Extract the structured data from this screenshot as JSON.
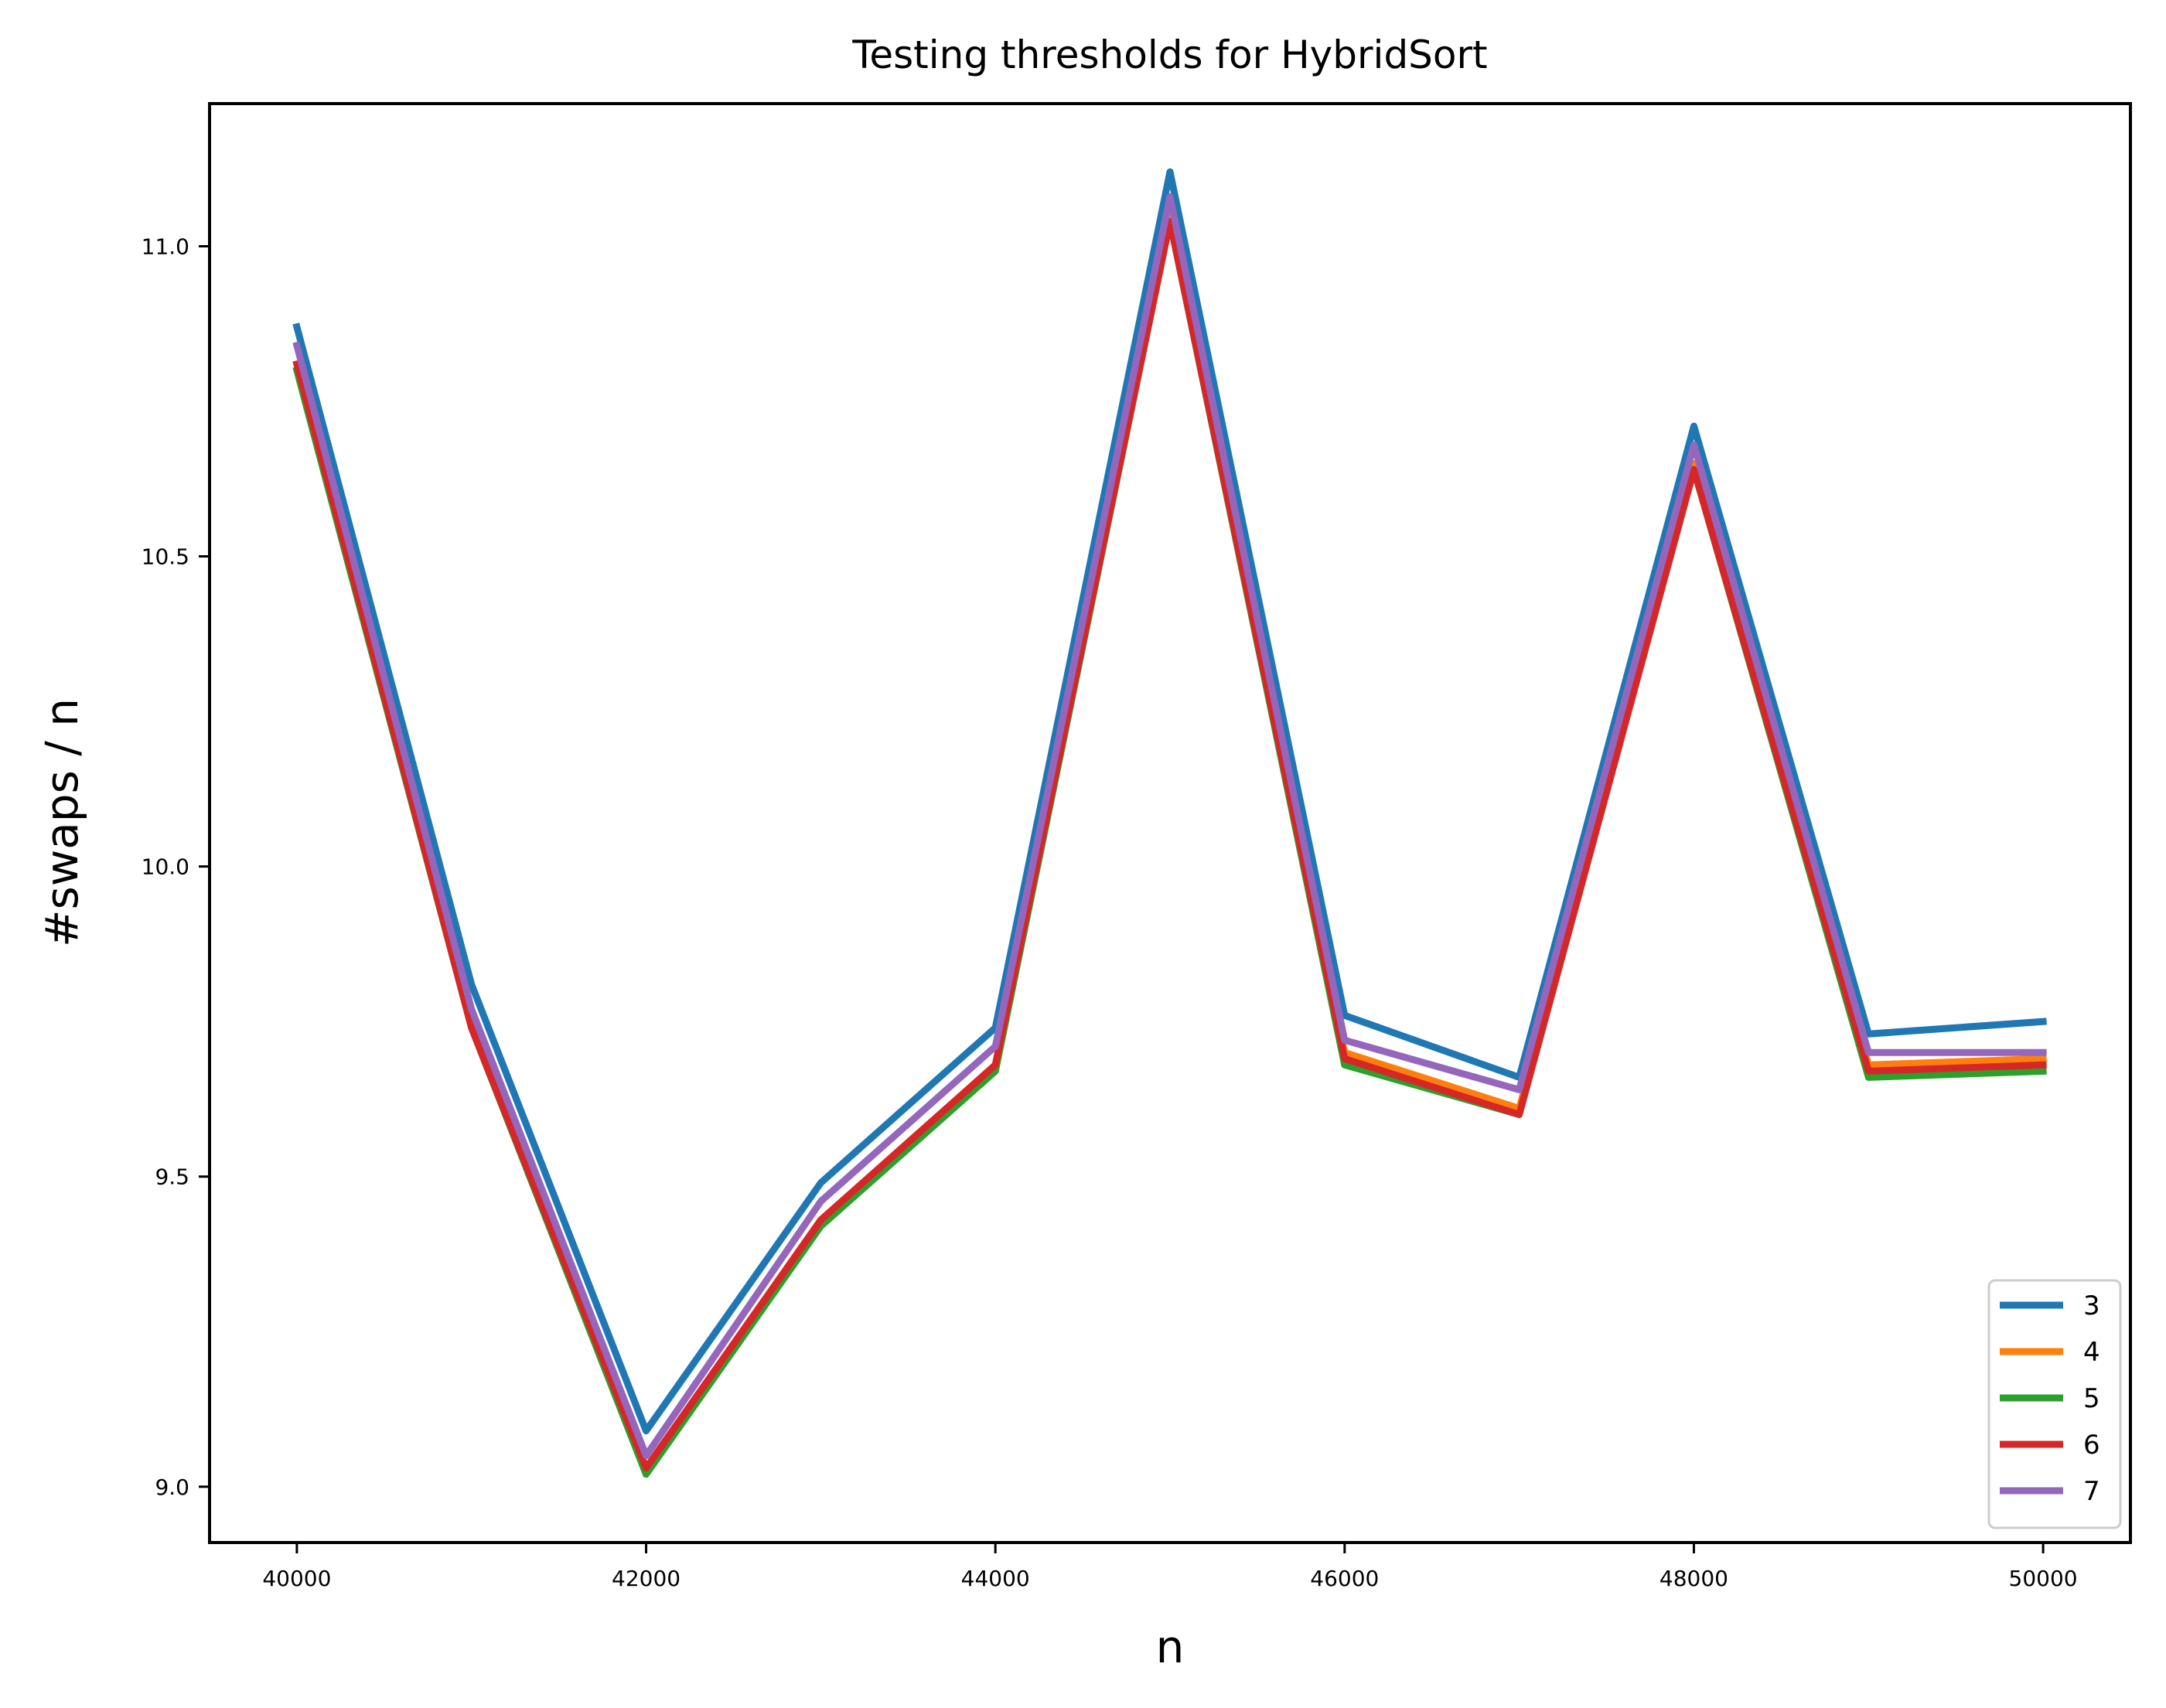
{
  "chart_data": {
    "type": "line",
    "title": "Testing thresholds for HybridSort",
    "xlabel": "n",
    "ylabel": "#swaps / n",
    "xlim": [
      39500,
      50500
    ],
    "ylim": [
      8.91,
      11.23
    ],
    "xticks": [
      40000,
      42000,
      44000,
      46000,
      48000,
      50000
    ],
    "xtick_labels": [
      "40000",
      "42000",
      "44000",
      "46000",
      "48000",
      "50000"
    ],
    "yticks": [
      9.0,
      9.5,
      10.0,
      10.5,
      11.0
    ],
    "ytick_labels": [
      "9.0",
      "9.5",
      "10.0",
      "10.5",
      "11.0"
    ],
    "grid": false,
    "legend_position": "lower-right",
    "x": [
      40000,
      41000,
      42000,
      43000,
      44000,
      45000,
      46000,
      47000,
      48000,
      49000,
      50000
    ],
    "series": [
      {
        "name": "3",
        "color": "#1f77b4",
        "values": [
          10.87,
          9.81,
          9.09,
          9.49,
          9.74,
          11.12,
          9.76,
          9.66,
          10.71,
          9.73,
          9.75
        ]
      },
      {
        "name": "4",
        "color": "#ff7f0e",
        "values": [
          10.81,
          9.75,
          9.03,
          9.43,
          9.68,
          11.05,
          9.7,
          9.61,
          10.65,
          9.68,
          9.69
        ]
      },
      {
        "name": "5",
        "color": "#2ca02c",
        "values": [
          10.8,
          9.74,
          9.02,
          9.42,
          9.67,
          11.04,
          9.68,
          9.6,
          10.64,
          9.66,
          9.67
        ]
      },
      {
        "name": "6",
        "color": "#d62728",
        "values": [
          10.81,
          9.74,
          9.03,
          9.43,
          9.68,
          11.04,
          9.69,
          9.6,
          10.64,
          9.67,
          9.68
        ]
      },
      {
        "name": "7",
        "color": "#9467bd",
        "values": [
          10.84,
          9.77,
          9.05,
          9.46,
          9.71,
          11.08,
          9.72,
          9.64,
          10.68,
          9.7,
          9.7
        ]
      }
    ]
  }
}
